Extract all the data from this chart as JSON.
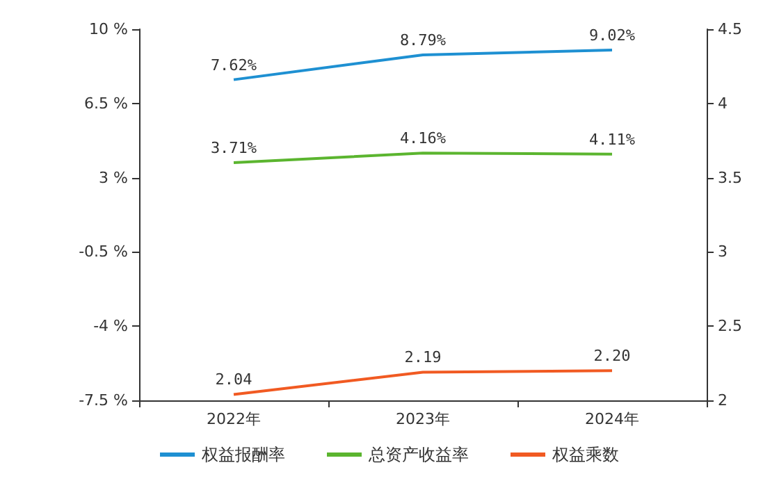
{
  "chart_data": {
    "type": "line",
    "categories": [
      "2022年",
      "2023年",
      "2024年"
    ],
    "series": [
      {
        "name": "权益报酬率",
        "color": "#1e90d2",
        "values": [
          7.62,
          8.79,
          9.02
        ],
        "value_labels": [
          "7.62%",
          "8.79%",
          "9.02%"
        ]
      },
      {
        "name": "总资产收益率",
        "color": "#5bb52f",
        "values": [
          3.71,
          4.16,
          4.11
        ],
        "value_labels": [
          "3.71%",
          "4.16%",
          "4.11%"
        ]
      },
      {
        "name": "权益乘数",
        "color": "#f15a22",
        "values": [
          2.04,
          2.19,
          2.2
        ],
        "value_labels": [
          "2.04",
          "2.19",
          "2.20"
        ],
        "axis": "y2"
      }
    ],
    "ylim": [
      -7.5,
      10
    ],
    "yticks": [
      {
        "value": -7.5,
        "label": "-7.5 %"
      },
      {
        "value": -4,
        "label": "-4 %"
      },
      {
        "value": -0.5,
        "label": "-0.5 %"
      },
      {
        "value": 3,
        "label": "3 %"
      },
      {
        "value": 6.5,
        "label": "6.5 %"
      },
      {
        "value": 10,
        "label": "10 %"
      }
    ],
    "y2lim": [
      2,
      4.5
    ],
    "y2ticks": [
      2,
      2.5,
      3,
      3.5,
      4,
      4.5
    ],
    "grid": false,
    "legend": "bottom",
    "marker": "none",
    "line_style": "solid"
  }
}
